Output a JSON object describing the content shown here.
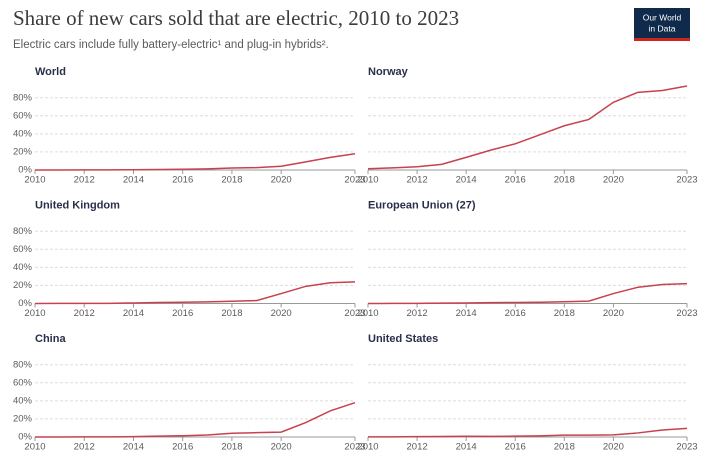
{
  "header": {
    "title": "Share of new cars sold that are electric, 2010 to 2023",
    "subtitle": "Electric cars include fully battery-electric¹ and plug-in hybrids².",
    "logo": [
      "Our World",
      "in Data"
    ]
  },
  "chart_data": [
    {
      "type": "line",
      "title": "World",
      "color": "#c8414f",
      "x": [
        2010,
        2011,
        2012,
        2013,
        2014,
        2015,
        2016,
        2017,
        2018,
        2019,
        2020,
        2021,
        2022,
        2023
      ],
      "values": [
        0,
        0,
        0.1,
        0.2,
        0.3,
        0.6,
        0.8,
        1.3,
        2.2,
        2.6,
        4.2,
        9,
        14,
        18
      ],
      "xlim": [
        2010,
        2023
      ],
      "xticks": [
        2010,
        2012,
        2014,
        2016,
        2018,
        2020,
        2023
      ],
      "ylim": [
        0,
        93
      ],
      "yticks": [
        {
          "value": 0,
          "label": "0%"
        },
        {
          "value": 20,
          "label": "20%"
        },
        {
          "value": 40,
          "label": "40%"
        },
        {
          "value": 60,
          "label": "60%"
        },
        {
          "value": 80,
          "label": "80%"
        }
      ],
      "grid": true
    },
    {
      "type": "line",
      "title": "Norway",
      "color": "#c8414f",
      "x": [
        2010,
        2011,
        2012,
        2013,
        2014,
        2015,
        2016,
        2017,
        2018,
        2019,
        2020,
        2021,
        2022,
        2023
      ],
      "values": [
        1.4,
        2.4,
        3.6,
        6.2,
        14,
        22,
        29,
        39,
        49,
        56,
        75,
        86,
        88,
        93
      ],
      "xlim": [
        2010,
        2023
      ],
      "xticks": [
        2010,
        2012,
        2014,
        2016,
        2018,
        2020,
        2023
      ],
      "ylim": [
        0,
        93
      ],
      "yticks": [
        0,
        20,
        40,
        60,
        80
      ],
      "grid": true
    },
    {
      "type": "line",
      "title": "United Kingdom",
      "color": "#c8414f",
      "x": [
        2010,
        2011,
        2012,
        2013,
        2014,
        2015,
        2016,
        2017,
        2018,
        2019,
        2020,
        2021,
        2022,
        2023
      ],
      "values": [
        0,
        0.1,
        0.1,
        0.2,
        0.6,
        1.1,
        1.4,
        1.8,
        2.5,
        3.2,
        11,
        19,
        23,
        24
      ],
      "xlim": [
        2010,
        2023
      ],
      "xticks": [
        2010,
        2012,
        2014,
        2016,
        2018,
        2020,
        2023
      ],
      "ylim": [
        0,
        93
      ],
      "yticks": [
        {
          "value": 0,
          "label": "0%"
        },
        {
          "value": 20,
          "label": "20%"
        },
        {
          "value": 40,
          "label": "40%"
        },
        {
          "value": 60,
          "label": "60%"
        },
        {
          "value": 80,
          "label": "80%"
        }
      ],
      "grid": true
    },
    {
      "type": "line",
      "title": "European Union (27)",
      "color": "#c8414f",
      "x": [
        2010,
        2011,
        2012,
        2013,
        2014,
        2015,
        2016,
        2017,
        2018,
        2019,
        2020,
        2021,
        2022,
        2023
      ],
      "values": [
        0,
        0.1,
        0.2,
        0.4,
        0.6,
        1.0,
        1.1,
        1.4,
        2.0,
        2.6,
        11,
        18,
        21,
        22
      ],
      "xlim": [
        2010,
        2023
      ],
      "xticks": [
        2010,
        2012,
        2014,
        2016,
        2018,
        2020,
        2023
      ],
      "ylim": [
        0,
        93
      ],
      "yticks": [
        0,
        20,
        40,
        60,
        80
      ],
      "grid": true
    },
    {
      "type": "line",
      "title": "China",
      "color": "#c8414f",
      "x": [
        2010,
        2011,
        2012,
        2013,
        2014,
        2015,
        2016,
        2017,
        2018,
        2019,
        2020,
        2021,
        2022,
        2023
      ],
      "values": [
        0,
        0,
        0.1,
        0.1,
        0.4,
        1.0,
        1.4,
        2.2,
        4.2,
        4.8,
        5.4,
        16,
        29,
        38
      ],
      "xlim": [
        2010,
        2023
      ],
      "xticks": [
        2010,
        2012,
        2014,
        2016,
        2018,
        2020,
        2023
      ],
      "ylim": [
        0,
        93
      ],
      "yticks": [
        {
          "value": 0,
          "label": "0%"
        },
        {
          "value": 20,
          "label": "20%"
        },
        {
          "value": 40,
          "label": "40%"
        },
        {
          "value": 60,
          "label": "60%"
        },
        {
          "value": 80,
          "label": "80%"
        }
      ],
      "grid": true
    },
    {
      "type": "line",
      "title": "United States",
      "color": "#c8414f",
      "x": [
        2010,
        2011,
        2012,
        2013,
        2014,
        2015,
        2016,
        2017,
        2018,
        2019,
        2020,
        2021,
        2022,
        2023
      ],
      "values": [
        0.1,
        0.2,
        0.4,
        0.6,
        0.8,
        0.7,
        0.9,
        1.2,
        2.1,
        2.1,
        2.3,
        4.5,
        7.7,
        9.5
      ],
      "xlim": [
        2010,
        2023
      ],
      "xticks": [
        2010,
        2012,
        2014,
        2016,
        2018,
        2020,
        2023
      ],
      "ylim": [
        0,
        93
      ],
      "yticks": [
        0,
        20,
        40,
        60,
        80
      ],
      "grid": true
    }
  ]
}
